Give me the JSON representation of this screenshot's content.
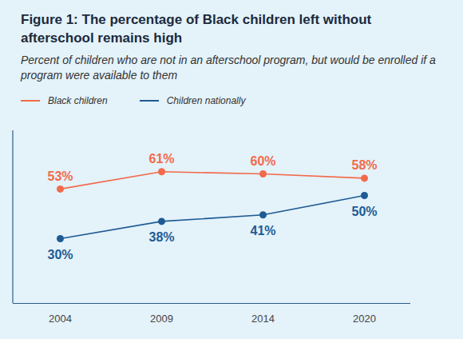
{
  "chart_data": {
    "type": "line",
    "title": "Figure 1: The percentage of Black children left without afterschool remains high",
    "subtitle": "Percent of children who are not in an afterschool program, but would be enrolled if a program were available to them",
    "categories": [
      "2004",
      "2009",
      "2014",
      "2020"
    ],
    "series": [
      {
        "name": "Black children",
        "color": "#f26a4b",
        "values": [
          53,
          61,
          60,
          58
        ],
        "value_labels": [
          "53%",
          "61%",
          "60%",
          "58%"
        ]
      },
      {
        "name": "Children nationally",
        "color": "#1e5b94",
        "values": [
          30,
          38,
          41,
          50
        ],
        "value_labels": [
          "30%",
          "38%",
          "41%",
          "50%"
        ]
      }
    ],
    "ylim": [
      0,
      80
    ],
    "tick_labels": "x",
    "data_labels": true,
    "legend": "top",
    "marker": "circle"
  }
}
